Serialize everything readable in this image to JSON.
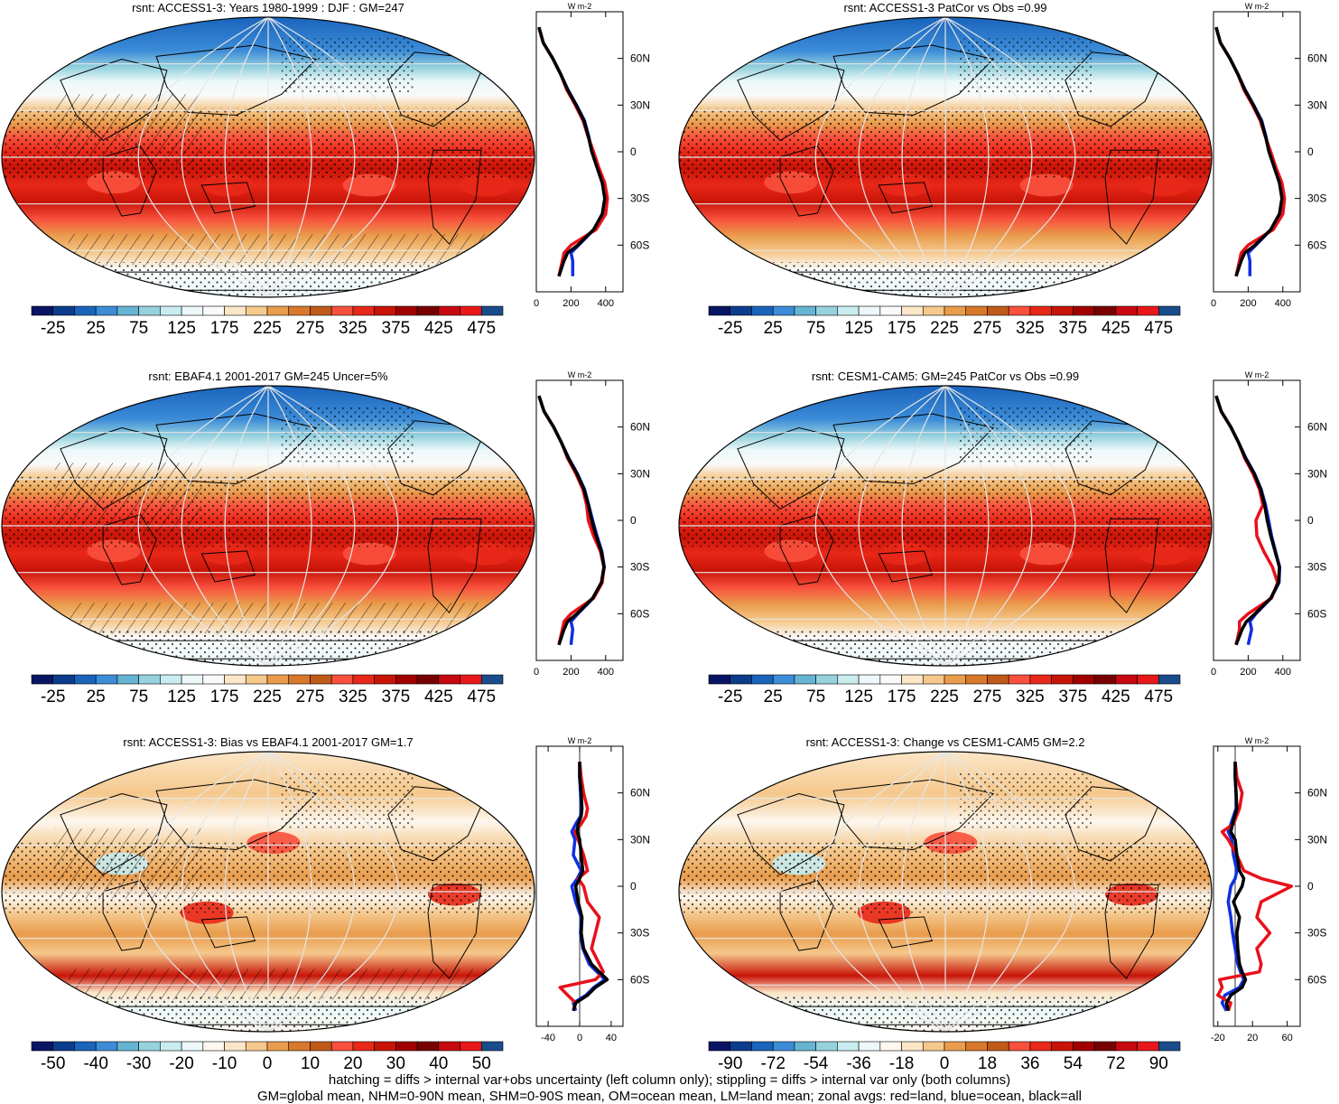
{
  "footer": {
    "line1": "hatching = diffs > internal var+obs uncertainty (left column only); stippling = diffs > internal var only (both columns)",
    "line2": "GM=global mean, NHM=0-90N mean, SHM=0-90S mean, OM=ocean mean, LM=land mean; zonal avgs: red=land, blue=ocean, black=all"
  },
  "colors": {
    "land": "#e8101a",
    "ocean": "#1030e0",
    "all": "#000000"
  },
  "chart_data": [
    {
      "type": "heatmap",
      "title": "rsnt: ACCESS1-3: Years 1980-1999 : DJF : GM=247",
      "field": "climatology",
      "colorbar": {
        "labels": [
          "-25",
          "25",
          "75",
          "125",
          "175",
          "225",
          "275",
          "325",
          "375",
          "425",
          "475"
        ]
      },
      "hatching": true,
      "stippling": true,
      "zonal": {
        "xaxis_ticks": [
          "0",
          "200",
          "400"
        ],
        "xlim": [
          0,
          500
        ],
        "units": "W m-2",
        "lat_ticks": [
          "60N",
          "30N",
          "0",
          "30S",
          "60S"
        ],
        "lat": [
          80,
          70,
          60,
          50,
          40,
          30,
          20,
          10,
          0,
          -10,
          -20,
          -30,
          -40,
          -50,
          -60,
          -65,
          -70,
          -80
        ],
        "series": [
          {
            "key": "all",
            "values": [
              15,
              40,
              95,
              140,
              180,
              230,
              275,
              300,
              320,
              350,
              380,
              395,
              380,
              330,
              240,
              180,
              160,
              130
            ]
          },
          {
            "key": "ocean",
            "values": [
              15,
              40,
              95,
              140,
              182,
              232,
              278,
              302,
              322,
              352,
              382,
              397,
              382,
              332,
              245,
              200,
              210,
              210
            ]
          },
          {
            "key": "land",
            "values": [
              15,
              40,
              95,
              140,
              175,
              225,
              270,
              298,
              330,
              360,
              395,
              410,
              400,
              345,
              200,
              160,
              150,
              130
            ]
          }
        ]
      }
    },
    {
      "type": "heatmap",
      "title": "rsnt: ACCESS1-3 PatCor vs Obs =0.99",
      "field": "climatology",
      "colorbar": {
        "labels": [
          "-25",
          "25",
          "75",
          "125",
          "175",
          "225",
          "275",
          "325",
          "375",
          "425",
          "475"
        ]
      },
      "hatching": false,
      "stippling": true,
      "zonal": {
        "xaxis_ticks": [
          "0",
          "200",
          "400"
        ],
        "xlim": [
          0,
          500
        ],
        "units": "W m-2",
        "lat_ticks": [
          "60N",
          "30N",
          "0",
          "30S",
          "60S"
        ],
        "lat": [
          80,
          70,
          60,
          50,
          40,
          30,
          20,
          10,
          0,
          -10,
          -20,
          -30,
          -40,
          -50,
          -60,
          -65,
          -70,
          -80
        ],
        "series": [
          {
            "key": "all",
            "values": [
              15,
              40,
              95,
              140,
              180,
              230,
              275,
              300,
              320,
              350,
              380,
              395,
              380,
              330,
              240,
              180,
              160,
              130
            ]
          },
          {
            "key": "ocean",
            "values": [
              15,
              40,
              95,
              140,
              182,
              232,
              278,
              302,
              322,
              352,
              382,
              397,
              382,
              332,
              245,
              200,
              210,
              210
            ]
          },
          {
            "key": "land",
            "values": [
              15,
              40,
              95,
              140,
              175,
              225,
              270,
              298,
              330,
              360,
              395,
              410,
              400,
              345,
              200,
              160,
              150,
              130
            ]
          }
        ]
      }
    },
    {
      "type": "heatmap",
      "title": "rsnt: EBAF4.1 2001-2017 GM=245 Uncer=5%",
      "field": "climatology",
      "colorbar": {
        "labels": [
          "-25",
          "25",
          "75",
          "125",
          "175",
          "225",
          "275",
          "325",
          "375",
          "425",
          "475"
        ]
      },
      "hatching": true,
      "stippling": true,
      "zonal": {
        "xaxis_ticks": [
          "0",
          "200",
          "400"
        ],
        "xlim": [
          0,
          500
        ],
        "units": "W m-2",
        "lat_ticks": [
          "60N",
          "30N",
          "0",
          "30S",
          "60S"
        ],
        "lat": [
          80,
          70,
          60,
          50,
          40,
          30,
          20,
          10,
          0,
          -10,
          -20,
          -30,
          -40,
          -50,
          -60,
          -65,
          -70,
          -80
        ],
        "series": [
          {
            "key": "all",
            "values": [
              15,
              45,
              100,
              145,
              185,
              235,
              275,
              300,
              320,
              345,
              375,
              390,
              375,
              325,
              235,
              180,
              160,
              130
            ]
          },
          {
            "key": "ocean",
            "values": [
              15,
              45,
              100,
              145,
              187,
              237,
              278,
              302,
              325,
              350,
              378,
              392,
              378,
              328,
              240,
              200,
              210,
              200
            ]
          },
          {
            "key": "land",
            "values": [
              15,
              45,
              100,
              145,
              180,
              228,
              268,
              290,
              300,
              330,
              370,
              390,
              380,
              330,
              200,
              160,
              150,
              130
            ]
          }
        ]
      }
    },
    {
      "type": "heatmap",
      "title": "rsnt: CESM1-CAM5: GM=245 PatCor vs Obs =0.99",
      "field": "climatology",
      "colorbar": {
        "labels": [
          "-25",
          "25",
          "75",
          "125",
          "175",
          "225",
          "275",
          "325",
          "375",
          "425",
          "475"
        ]
      },
      "hatching": false,
      "stippling": true,
      "zonal": {
        "xaxis_ticks": [
          "0",
          "200",
          "400"
        ],
        "xlim": [
          0,
          500
        ],
        "units": "W m-2",
        "lat_ticks": [
          "60N",
          "30N",
          "0",
          "30S",
          "60S"
        ],
        "lat": [
          80,
          70,
          60,
          50,
          40,
          30,
          20,
          10,
          0,
          -10,
          -20,
          -30,
          -40,
          -50,
          -60,
          -65,
          -70,
          -80
        ],
        "series": [
          {
            "key": "all",
            "values": [
              15,
              45,
              100,
              145,
              185,
              235,
              272,
              295,
              310,
              330,
              355,
              380,
              375,
              330,
              240,
              190,
              165,
              130
            ]
          },
          {
            "key": "ocean",
            "values": [
              15,
              45,
              100,
              145,
              187,
              237,
              275,
              300,
              318,
              335,
              358,
              382,
              378,
              332,
              245,
              210,
              220,
              200
            ]
          },
          {
            "key": "land",
            "values": [
              15,
              45,
              100,
              145,
              180,
              228,
              265,
              285,
              245,
              250,
              290,
              340,
              370,
              335,
              200,
              150,
              150,
              130
            ]
          }
        ]
      }
    },
    {
      "type": "heatmap",
      "title": "rsnt: ACCESS1-3: Bias vs EBAF4.1 2001-2017 GM=1.7",
      "field": "difference",
      "colorbar": {
        "labels": [
          "-50",
          "-40",
          "-30",
          "-20",
          "-10",
          "0",
          "10",
          "20",
          "30",
          "40",
          "50"
        ]
      },
      "hatching": true,
      "stippling": true,
      "zonal": {
        "xaxis_ticks": [
          "-40",
          "0",
          "40"
        ],
        "xlim": [
          -55,
          55
        ],
        "units": "W m-2",
        "lat_ticks": [
          "60N",
          "30N",
          "0",
          "30S",
          "60S"
        ],
        "lat": [
          80,
          70,
          60,
          50,
          45,
          40,
          35,
          30,
          20,
          10,
          5,
          0,
          -10,
          -20,
          -30,
          -40,
          -50,
          -55,
          -60,
          -65,
          -70,
          -75,
          -80
        ],
        "series": [
          {
            "key": "all",
            "values": [
              0,
              0,
              2,
              3,
              2,
              -2,
              -3,
              0,
              2,
              4,
              0,
              -5,
              -2,
              3,
              2,
              5,
              15,
              25,
              35,
              20,
              10,
              -5,
              -8
            ]
          },
          {
            "key": "ocean",
            "values": [
              0,
              0,
              1,
              2,
              1,
              -5,
              -10,
              -6,
              -8,
              2,
              -3,
              -10,
              -5,
              2,
              1,
              4,
              12,
              22,
              32,
              18,
              8,
              -8,
              -5
            ]
          },
          {
            "key": "land",
            "values": [
              0,
              2,
              5,
              10,
              8,
              2,
              -6,
              -2,
              5,
              10,
              -2,
              5,
              10,
              25,
              20,
              15,
              25,
              30,
              20,
              -25,
              -15,
              -5,
              -8
            ]
          }
        ]
      }
    },
    {
      "type": "heatmap",
      "title": "rsnt: ACCESS1-3: Change vs CESM1-CAM5 GM=2.2",
      "field": "difference",
      "colorbar": {
        "labels": [
          "-90",
          "-72",
          "-54",
          "-36",
          "-18",
          "0",
          "18",
          "36",
          "54",
          "72",
          "90"
        ]
      },
      "hatching": false,
      "stippling": true,
      "zonal": {
        "xaxis_ticks": [
          "-20",
          "20",
          "60"
        ],
        "xlim": [
          -25,
          75
        ],
        "units": "W m-2",
        "lat_ticks": [
          "60N",
          "30N",
          "0",
          "30S",
          "60S"
        ],
        "lat": [
          80,
          70,
          60,
          50,
          40,
          35,
          30,
          20,
          10,
          5,
          0,
          -10,
          -20,
          -30,
          -40,
          -50,
          -55,
          -60,
          -65,
          -70,
          -75,
          -80
        ],
        "series": [
          {
            "key": "all",
            "values": [
              0,
              0,
              1,
              2,
              -3,
              -5,
              0,
              2,
              5,
              10,
              8,
              -2,
              5,
              2,
              3,
              5,
              8,
              12,
              8,
              -5,
              -10,
              -8
            ]
          },
          {
            "key": "ocean",
            "values": [
              0,
              0,
              1,
              1,
              -5,
              -8,
              -4,
              -2,
              2,
              0,
              -5,
              -8,
              -5,
              -3,
              0,
              3,
              6,
              10,
              5,
              -12,
              -15,
              -10
            ]
          },
          {
            "key": "land",
            "values": [
              0,
              2,
              8,
              5,
              -2,
              -15,
              -8,
              2,
              10,
              30,
              65,
              30,
              25,
              40,
              25,
              30,
              28,
              -18,
              -15,
              -20,
              -5,
              -8
            ]
          }
        ]
      }
    }
  ]
}
